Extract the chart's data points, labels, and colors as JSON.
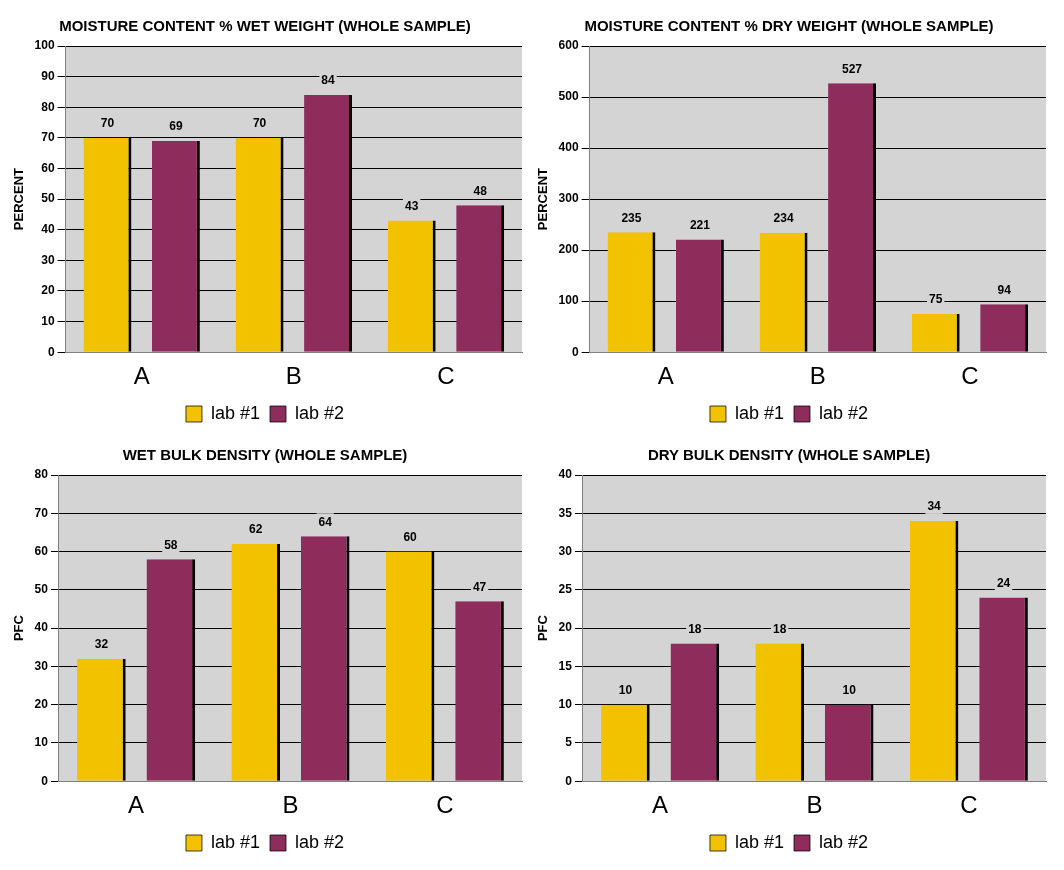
{
  "chart_data": [
    {
      "type": "bar",
      "title": "MOISTURE CONTENT % WET WEIGHT (WHOLE SAMPLE)",
      "ylabel": "PERCENT",
      "categories": [
        "A",
        "B",
        "C"
      ],
      "series": [
        {
          "name": "lab #1",
          "color": "#f2c200",
          "values": [
            70,
            70,
            43
          ]
        },
        {
          "name": "lab #2",
          "color": "#8e2c5c",
          "values": [
            69,
            84,
            48
          ]
        }
      ],
      "ylim": [
        0,
        100
      ],
      "yticks": [
        0,
        10,
        20,
        30,
        40,
        50,
        60,
        70,
        80,
        90,
        100
      ],
      "grid": "y",
      "legend": "bottom",
      "data_labels": true
    },
    {
      "type": "bar",
      "title": "MOISTURE CONTENT % DRY WEIGHT (WHOLE SAMPLE)",
      "ylabel": "PERCENT",
      "categories": [
        "A",
        "B",
        "C"
      ],
      "series": [
        {
          "name": "lab #1",
          "color": "#f2c200",
          "values": [
            235,
            234,
            75
          ]
        },
        {
          "name": "lab #2",
          "color": "#8e2c5c",
          "values": [
            221,
            527,
            94
          ]
        }
      ],
      "ylim": [
        0,
        600
      ],
      "yticks": [
        0,
        100,
        200,
        300,
        400,
        500,
        600
      ],
      "grid": "y",
      "legend": "bottom",
      "data_labels": true
    },
    {
      "type": "bar",
      "title": "WET BULK DENSITY (WHOLE SAMPLE)",
      "ylabel": "PFC",
      "categories": [
        "A",
        "B",
        "C"
      ],
      "series": [
        {
          "name": "lab #1",
          "color": "#f2c200",
          "values": [
            32,
            62,
            60
          ]
        },
        {
          "name": "lab #2",
          "color": "#8e2c5c",
          "values": [
            58,
            64,
            47
          ]
        }
      ],
      "ylim": [
        0,
        80
      ],
      "yticks": [
        0,
        10,
        20,
        30,
        40,
        50,
        60,
        70,
        80
      ],
      "grid": "y",
      "legend": "bottom",
      "data_labels": true
    },
    {
      "type": "bar",
      "title": "DRY BULK DENSITY (WHOLE SAMPLE)",
      "ylabel": "PFC",
      "categories": [
        "A",
        "B",
        "C"
      ],
      "series": [
        {
          "name": "lab #1",
          "color": "#f2c200",
          "values": [
            10,
            18,
            34
          ]
        },
        {
          "name": "lab #2",
          "color": "#8e2c5c",
          "values": [
            18,
            10,
            24
          ]
        }
      ],
      "ylim": [
        0,
        40
      ],
      "yticks": [
        0,
        5,
        10,
        15,
        20,
        25,
        30,
        35,
        40
      ],
      "grid": "y",
      "legend": "bottom",
      "data_labels": true
    }
  ]
}
